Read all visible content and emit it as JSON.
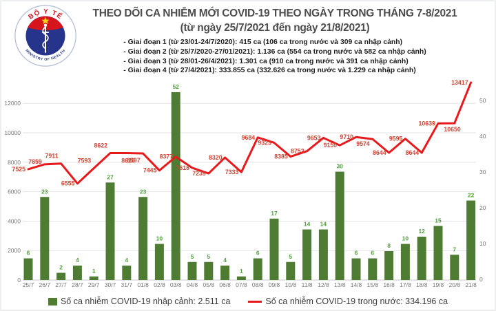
{
  "header": {
    "title": "THEO DÕI CA NHIỄM MỚI COVID-19 THEO NGÀY TRONG THÁNG 7-8/2021",
    "subtitle": "(từ ngày 25/7/2021 đến ngày 21/8/2021)",
    "phases": [
      "- Giai đoạn 1 (từ 23/01-24/7/2020): 415 ca (106 ca trong nước và 309 ca nhập cảnh)",
      "- Giai đoạn 2 (từ 25/7/2020-27/01/2021): 1.136 ca (554 ca trong nước và 582 ca nhập cảnh)",
      "- Giai đoạn 3 (từ 28/01-26/4/2021): 1.301 ca (910 ca trong nước và 391 ca nhập cảnh)",
      "- Giai đoạn 4 (từ 27/4/2021): 333.855 ca (332.626 ca trong nước và 1.229 ca nhập cảnh)"
    ],
    "logo": {
      "top_text": "BỘ Y TẾ",
      "bottom_text": "MINISTRY OF HEALTH"
    }
  },
  "chart_data": {
    "type": "bar+line",
    "categories": [
      "25/7",
      "26/7",
      "27/7",
      "28/7",
      "29/7",
      "30/7",
      "31/7",
      "01/8",
      "02/8",
      "03/8",
      "04/8",
      "05/8",
      "06/8",
      "07/8",
      "08/8",
      "09/8",
      "10/8",
      "11/8",
      "12/8",
      "13/8",
      "14/8",
      "15/8",
      "16/8",
      "17/8",
      "18/8",
      "19/8",
      "20/8",
      "21/8"
    ],
    "series": [
      {
        "name": "Số ca nhiễm COVID-19 nhập cảnh",
        "type": "bar",
        "axis": "right",
        "values": [
          6,
          23,
          2,
          4,
          1,
          27,
          4,
          23,
          10,
          52,
          5,
          5,
          4,
          1,
          6,
          17,
          5,
          14,
          14,
          30,
          6,
          6,
          8,
          10,
          12,
          15,
          7,
          22
        ]
      },
      {
        "name": "Số ca nhiễm COVID-19 trong nước",
        "type": "line",
        "axis": "left",
        "values": [
          7525,
          7859,
          7911,
          6555,
          7593,
          8622,
          8620,
          8597,
          7445,
          8377,
          7618,
          7239,
          8320,
          7333,
          9684,
          9323,
          8385,
          8752,
          9653,
          9150,
          9710,
          9574,
          8644,
          9595,
          8644,
          10639,
          10650,
          13417
        ]
      }
    ],
    "left_axis": {
      "ticks": [
        0,
        2000,
        4000,
        6000,
        8000,
        10000,
        12000
      ],
      "max": 13400
    },
    "right_axis": {
      "ticks": [
        0,
        10,
        20,
        30,
        40,
        50
      ],
      "max": 55
    },
    "grid": true,
    "legend_position": "bottom",
    "title": "THEO DÕI CA NHIỄM MỚI COVID-19 THEO NGÀY TRONG THÁNG 7-8/2021"
  },
  "legend": {
    "items": [
      {
        "label": "Số ca nhiễm COVID-19 nhập cảnh: 2.511 ca",
        "marker": "square",
        "color": "#4e7c33"
      },
      {
        "label": "Số ca nhiễm COVID-19 trong nước: 334.196 ca",
        "marker": "line",
        "color": "#e8191c"
      }
    ]
  },
  "colors": {
    "bar": "#4e7c33",
    "bar_label": "#52a03e",
    "line": "#e8191c",
    "line_label": "#cf4434",
    "axis_text": "#767676",
    "grid": "#e3e3e3",
    "axis_line": "#c9c9c9",
    "title_text": "#4d4d4d",
    "logo_navy": "#27348b",
    "logo_red": "#d6141c",
    "logo_star": "#f8d513"
  }
}
